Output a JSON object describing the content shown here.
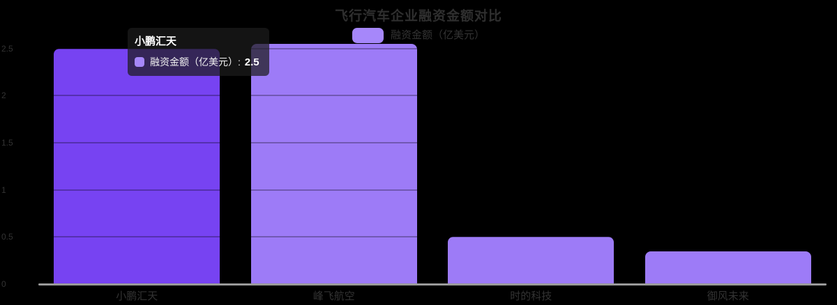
{
  "chart_data": {
    "type": "bar",
    "title": "飞行汽车企业融资金额对比",
    "legend": {
      "label": "融资金额（亿美元）",
      "swatch_color": "#a687fa",
      "label_color": "#333333"
    },
    "series_name": "融资金额（亿美元）",
    "categories": [
      "小鹏汇天",
      "峰飞航空",
      "时的科技",
      "御风未来"
    ],
    "values": [
      2.5,
      2.55,
      0.5,
      0.35
    ],
    "xlabel": "",
    "ylabel": "",
    "ylim": [
      0,
      2.5
    ],
    "yticks": [
      0,
      0.5,
      1,
      1.5,
      2,
      2.5
    ],
    "grid": true,
    "legend_position": "top",
    "background_color": "#000000",
    "bar_color": "#9d7bf7",
    "bar_highlight_color": "#7743f2",
    "highlighted_index": 0,
    "axis_line_color": "#9a9a9a",
    "axis_label_color": "#333333",
    "title_color": "#2f2f2f"
  },
  "tooltip": {
    "title": "小鹏汇天",
    "item": {
      "label": "融资金额（亿美元）",
      "separator": ": ",
      "value": "2.5",
      "swatch_color": "#a687fa"
    }
  }
}
